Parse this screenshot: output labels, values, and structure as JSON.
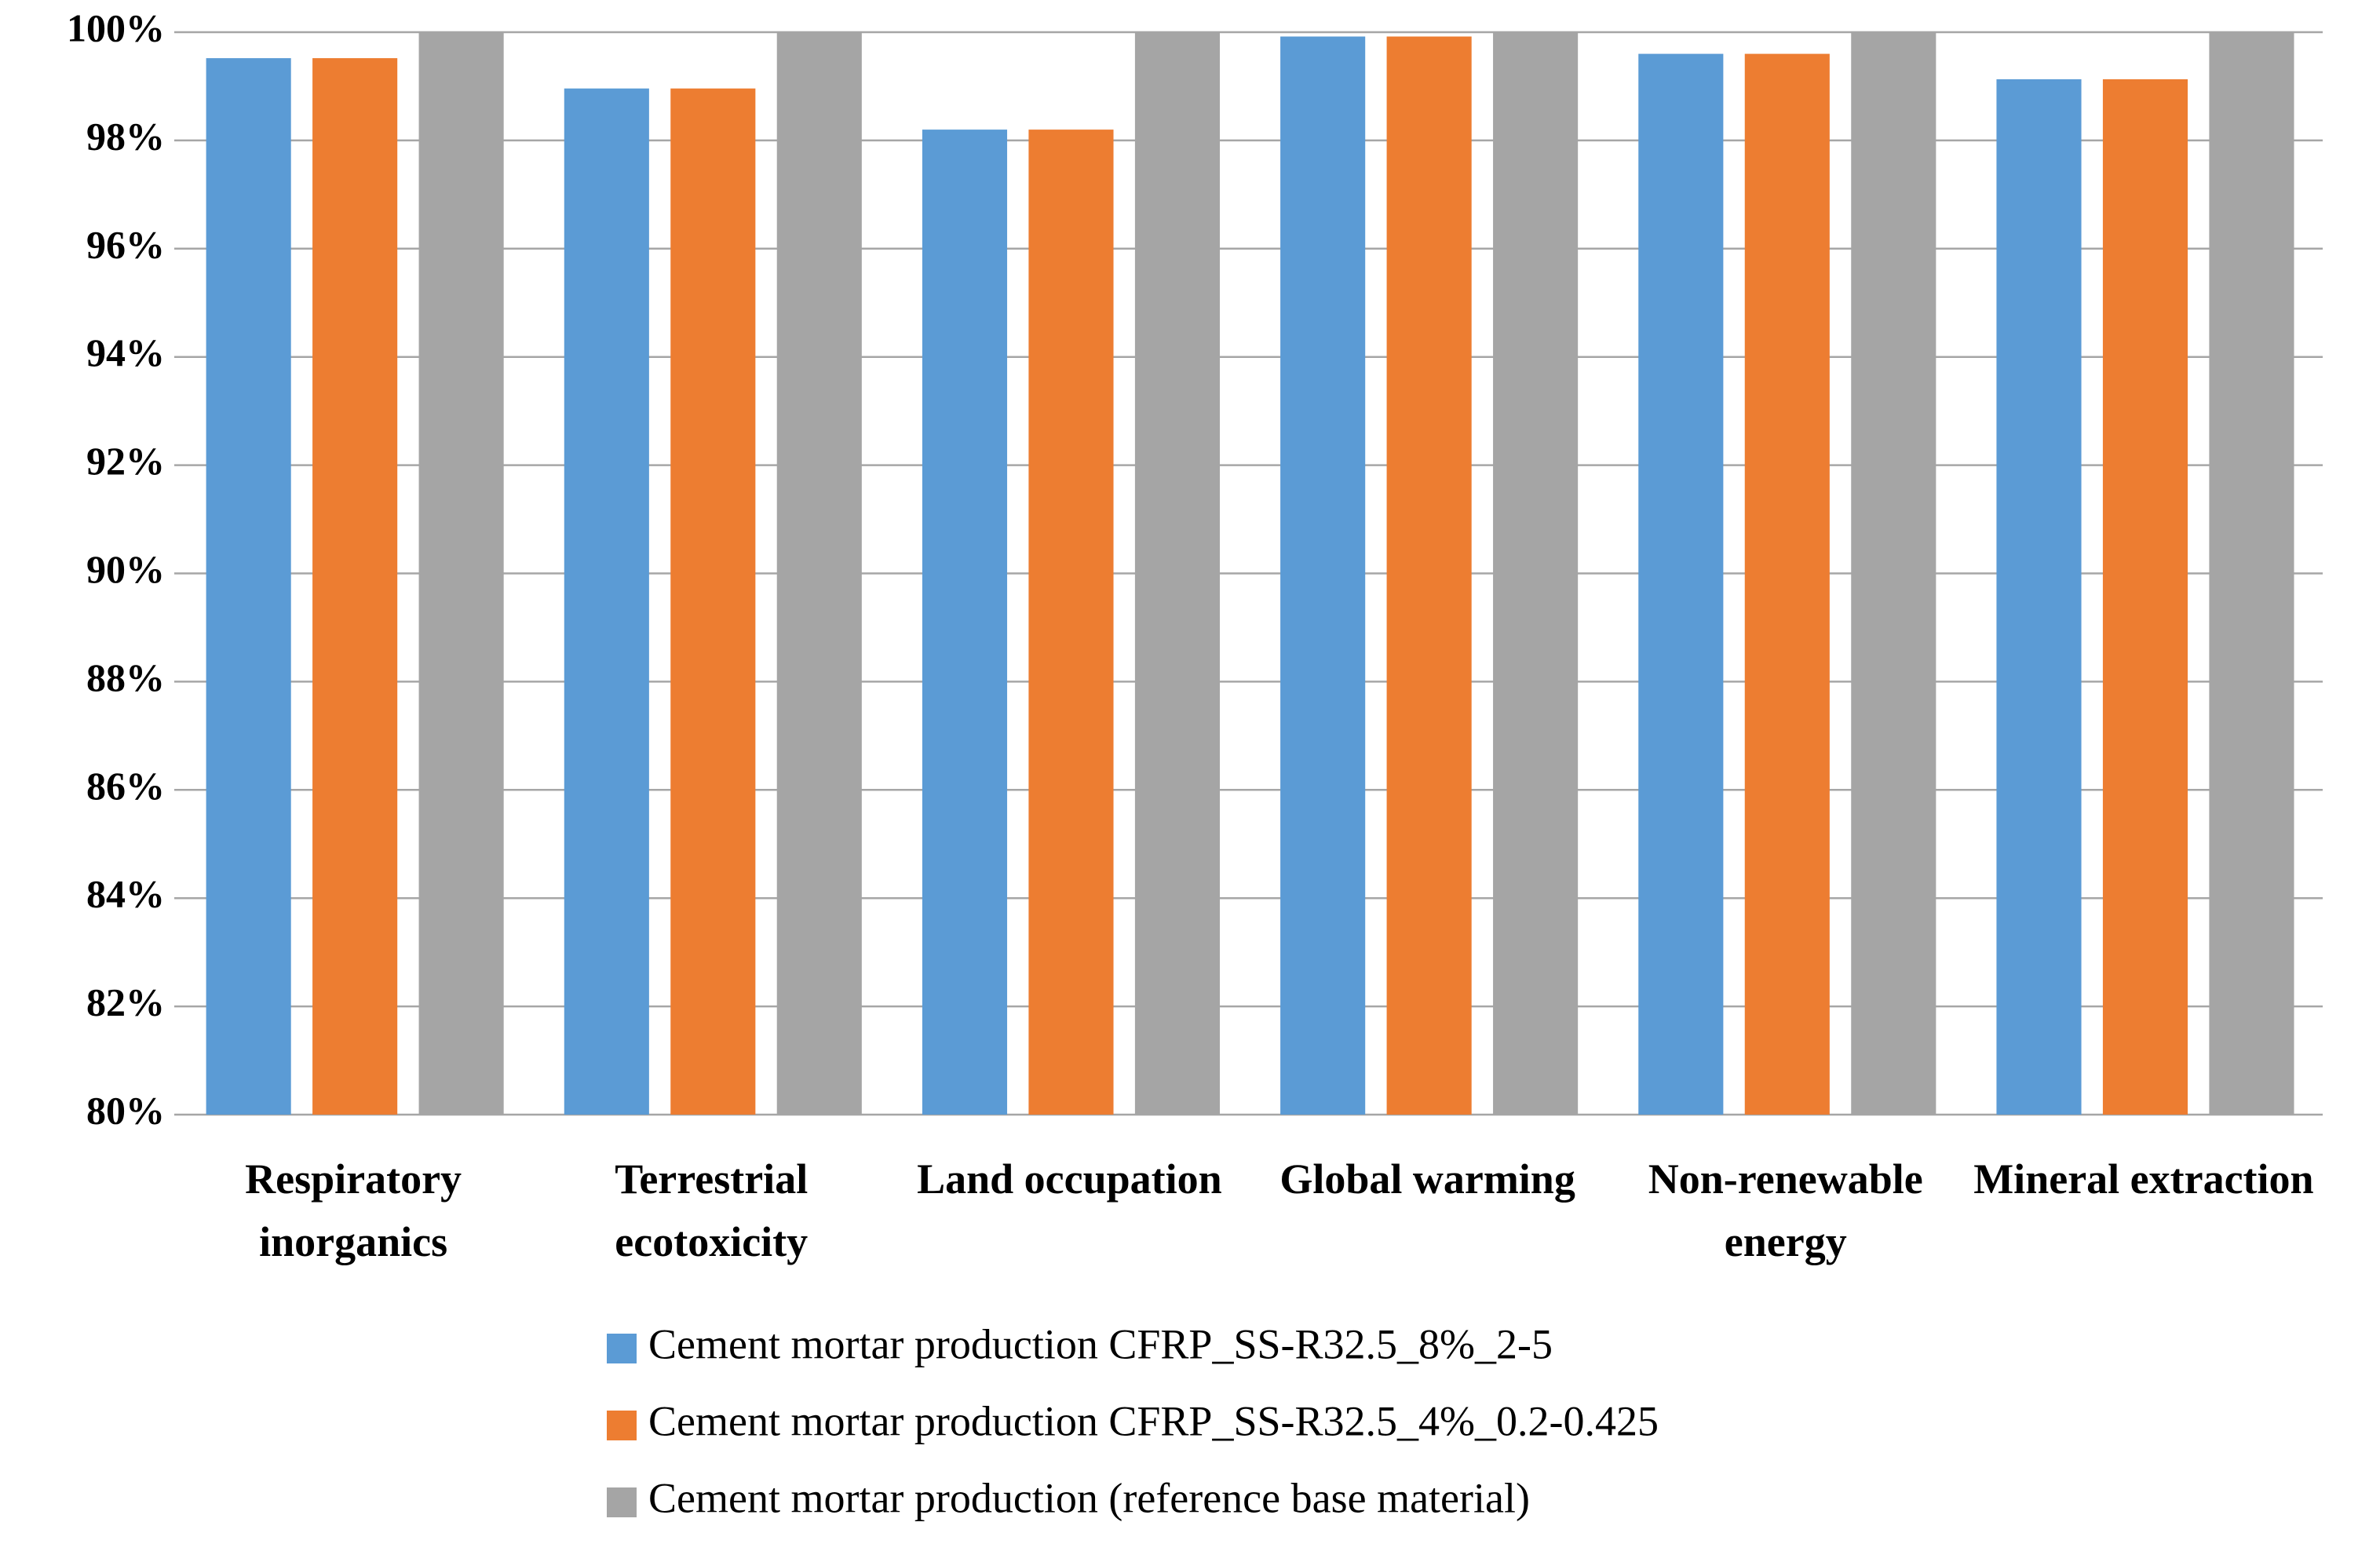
{
  "chart_data": {
    "type": "bar",
    "categories": [
      "Respiratory inorganics",
      "Terrestrial ecotoxicity",
      "Land occupation",
      "Global warming",
      "Non-renewable energy",
      "Mineral extraction"
    ],
    "series": [
      {
        "name": "Cement mortar production CFRP_SS-R32.5_8%_2-5",
        "color": "#5b9bd5",
        "values": [
          99.52,
          98.96,
          98.2,
          99.92,
          99.6,
          99.13
        ]
      },
      {
        "name": "Cement mortar production CFRP_SS-R32.5_4%_0.2-0.425",
        "color": "#ed7d31",
        "values": [
          99.52,
          98.96,
          98.2,
          99.92,
          99.6,
          99.13
        ]
      },
      {
        "name": "Cement mortar production (reference base material)",
        "color": "#a5a5a5",
        "values": [
          100,
          100,
          100,
          100,
          100,
          100
        ]
      }
    ],
    "ylim": [
      80,
      100
    ],
    "yticks": [
      {
        "value": 80,
        "label": "80%"
      },
      {
        "value": 82,
        "label": "82%"
      },
      {
        "value": 84,
        "label": "84%"
      },
      {
        "value": 86,
        "label": "86%"
      },
      {
        "value": 88,
        "label": "88%"
      },
      {
        "value": 90,
        "label": "90%"
      },
      {
        "value": 92,
        "label": "92%"
      },
      {
        "value": 94,
        "label": "94%"
      },
      {
        "value": 96,
        "label": "96%"
      },
      {
        "value": 98,
        "label": "98%"
      },
      {
        "value": 100,
        "label": "100%"
      }
    ],
    "grid": true
  }
}
